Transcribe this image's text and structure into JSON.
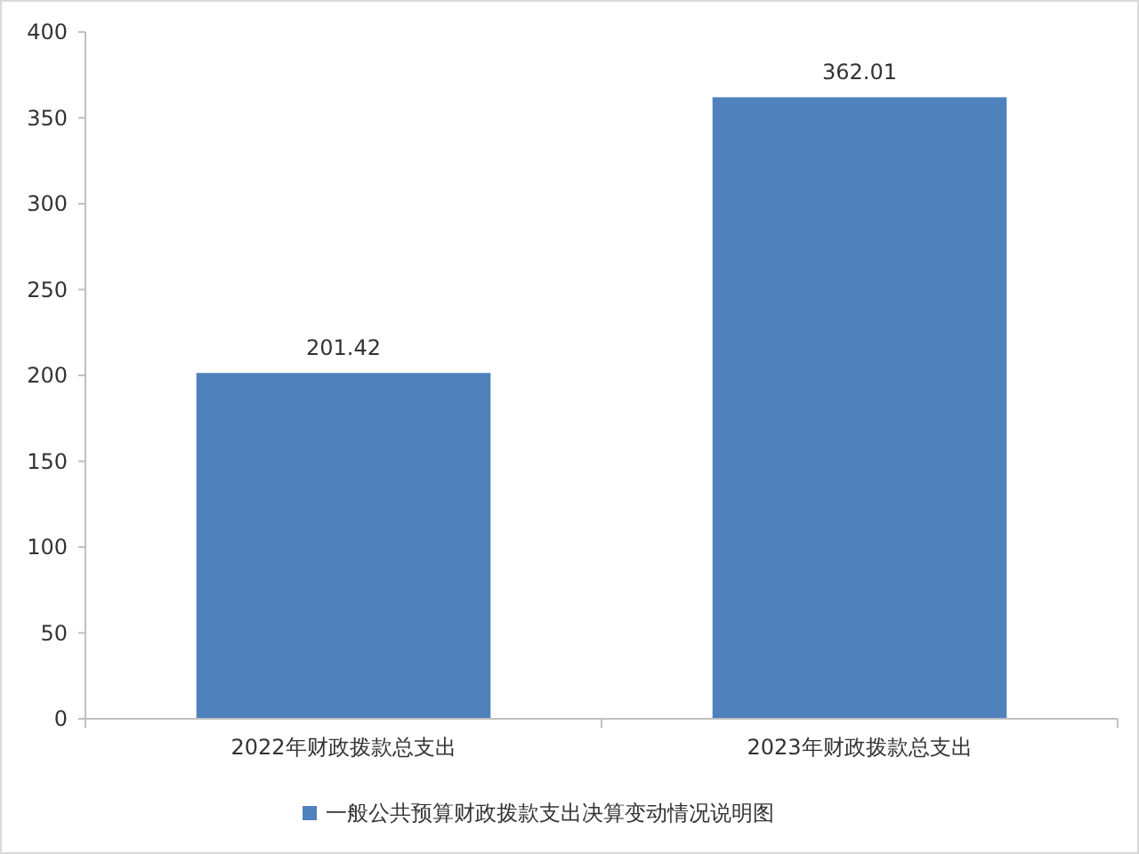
{
  "chart_data": {
    "type": "bar",
    "categories": [
      "2022年财政拨款总支出",
      "2023年财政拨款总支出"
    ],
    "series": [
      {
        "name": "一般公共预算财政拨款支出决算变动情况说明图",
        "color": "#4f81bd",
        "values": [
          201.42,
          362.01
        ]
      }
    ],
    "ylim": [
      0,
      400
    ],
    "yticks": [
      0,
      50,
      100,
      150,
      200,
      250,
      300,
      350,
      400
    ],
    "grid": false,
    "legend": "bottom",
    "data_labels": true
  }
}
